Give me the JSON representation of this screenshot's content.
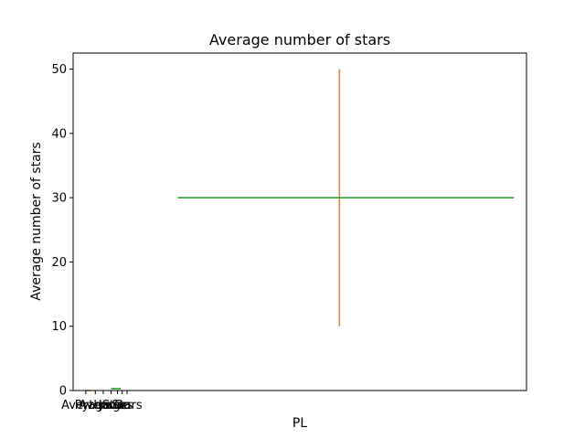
{
  "chart_data": {
    "type": "line",
    "title": "Average number of stars",
    "xlabel": "PL",
    "ylabel": "Average number of stars",
    "ylim": [
      0,
      52.5
    ],
    "yticks": [
      0,
      10,
      20,
      30,
      40,
      50
    ],
    "xticks": [
      {
        "label": "Average",
        "x": 0
      },
      {
        "label": "Python",
        "x": 0.3
      },
      {
        "label": "Average",
        "x": 0.55
      },
      {
        "label": "Java",
        "x": 0.8
      },
      {
        "label": "Stars",
        "x": 1.0
      },
      {
        "label": "Go",
        "x": 1.15
      },
      {
        "label": "Stars",
        "x": 1.3
      }
    ],
    "xlim": [
      -0.4,
      13.9
    ],
    "grid": false,
    "series": [
      {
        "color": "#1f77b4",
        "points": [
          [
            0,
            0
          ],
          [
            0,
            0
          ]
        ]
      },
      {
        "color": "#ff7f0e",
        "points": [
          [
            0,
            0
          ],
          [
            0.15,
            0
          ]
        ]
      },
      {
        "color": "#2ca02c",
        "points": [
          [
            0.8,
            0.3
          ],
          [
            1.1,
            0.3
          ]
        ]
      },
      {
        "color": "#ff7f0e",
        "points": [
          [
            8,
            10
          ],
          [
            8,
            50
          ]
        ]
      },
      {
        "color": "#2ca02c",
        "points": [
          [
            2.9,
            30
          ],
          [
            13.5,
            30
          ]
        ]
      }
    ]
  }
}
